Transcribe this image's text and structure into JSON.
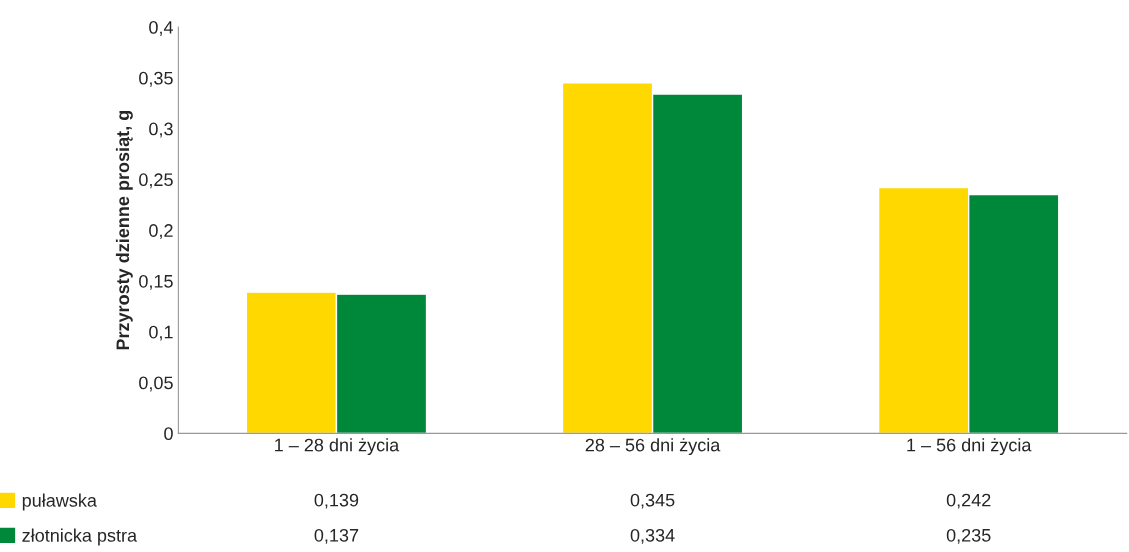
{
  "chart_data": {
    "type": "bar",
    "ylabel": "Przyrosty dzienne prosiąt, g",
    "categories": [
      "1 – 28 dni życia",
      "28 – 56 dni życia",
      "1 – 56 dni życia"
    ],
    "series": [
      {
        "name": "puławska",
        "color": "#ffd800",
        "values": [
          0.139,
          0.345,
          0.242
        ],
        "value_labels": [
          "0,139",
          "0,345",
          "0,242"
        ]
      },
      {
        "name": "złotnicka pstra",
        "color": "#00883a",
        "values": [
          0.137,
          0.334,
          0.235
        ],
        "value_labels": [
          "0,137",
          "0,334",
          "0,235"
        ]
      }
    ],
    "ylim": [
      0,
      0.4
    ],
    "yticks": [
      0,
      {
        "value": 0.05,
        "label": "0,05"
      },
      {
        "value": 0.1,
        "label": "0,1"
      },
      {
        "value": 0.15,
        "label": "0,15"
      },
      {
        "value": 0.2,
        "label": "0,2"
      },
      {
        "value": 0.25,
        "label": "0,25"
      },
      {
        "value": 0.3,
        "label": "0,3"
      },
      {
        "value": 0.35,
        "label": "0,35"
      },
      {
        "value": 0.4,
        "label": "0,4"
      }
    ],
    "grid": false,
    "legend": "bottom left"
  }
}
